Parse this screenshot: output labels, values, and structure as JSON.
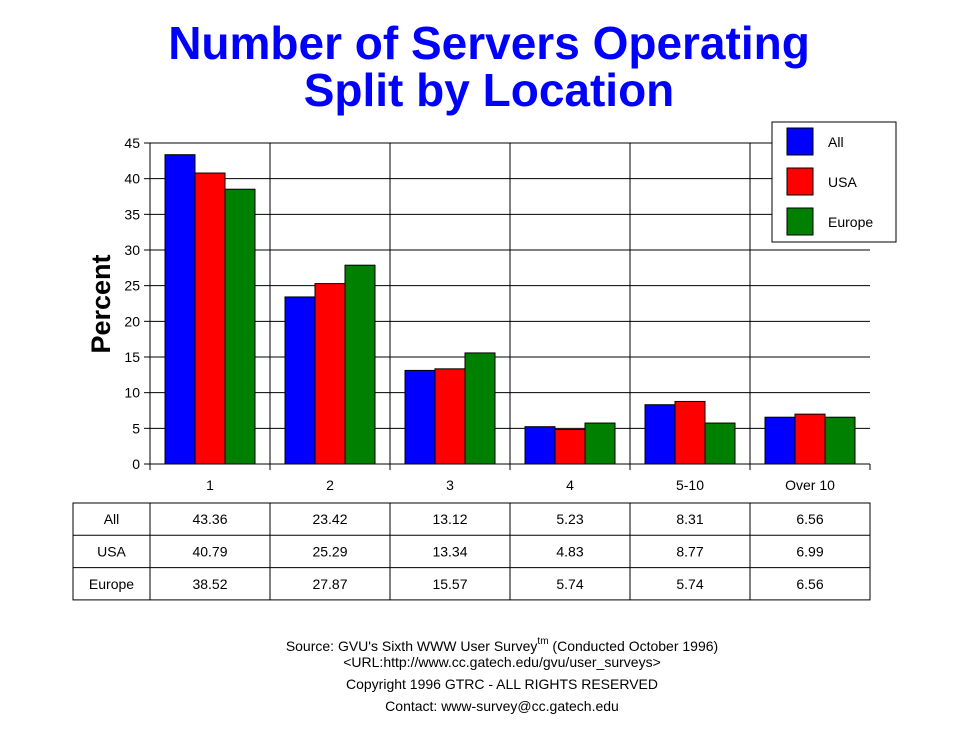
{
  "chart_data": {
    "type": "bar",
    "title": [
      "Number of Servers Operating",
      "Split by Location"
    ],
    "xlabel": "",
    "ylabel": "Percent",
    "ylim": [
      0,
      45
    ],
    "yticks": [
      0,
      5,
      10,
      15,
      20,
      25,
      30,
      35,
      40,
      45
    ],
    "grid": true,
    "legend_position": "top-right",
    "categories": [
      "1",
      "2",
      "3",
      "4",
      "5-10",
      "Over 10"
    ],
    "series": [
      {
        "name": "All",
        "color": "#0000FF",
        "values": [
          43.36,
          23.42,
          13.12,
          5.23,
          8.31,
          6.56
        ],
        "labels": [
          "43.36",
          "23.42",
          "13.12",
          "5.23",
          "8.31",
          "6.56"
        ]
      },
      {
        "name": "USA",
        "color": "#FF0000",
        "values": [
          40.79,
          25.29,
          13.34,
          4.83,
          8.77,
          6.99
        ],
        "labels": [
          "40.79",
          "25.29",
          "13.34",
          "4.83",
          "8.77",
          "6.99"
        ]
      },
      {
        "name": "Europe",
        "color": "#008000",
        "values": [
          38.52,
          27.87,
          15.57,
          5.74,
          5.74,
          6.56
        ],
        "labels": [
          "38.52",
          "27.87",
          "15.57",
          "5.74",
          "5.74",
          "6.56"
        ]
      }
    ]
  },
  "footer": {
    "source_prefix": "Source: GVU's Sixth WWW User Survey",
    "source_tm": "tm",
    "source_suffix": " (Conducted October 1996)",
    "url": "<URL:http://www.cc.gatech.edu/gvu/user_surveys>",
    "copyright": "Copyright 1996 GTRC -  ALL RIGHTS RESERVED",
    "contact": "Contact: www-survey@cc.gatech.edu"
  }
}
